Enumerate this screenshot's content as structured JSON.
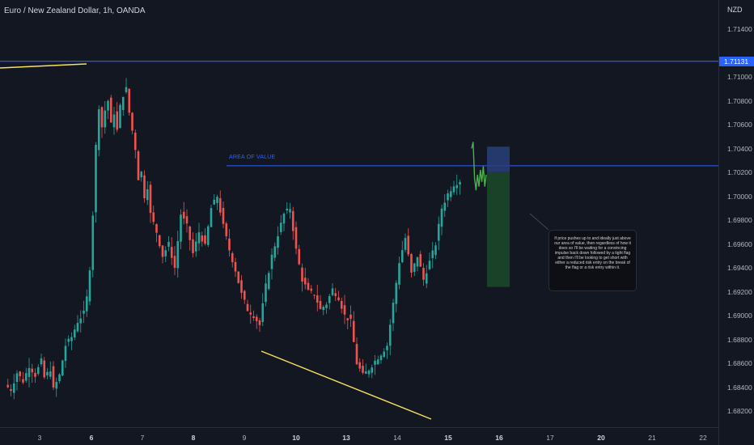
{
  "header": {
    "symbol_title": "Euro / New Zealand Dollar, 1h, OANDA"
  },
  "price_axis": {
    "currency": "NZD",
    "labels": [
      "1.71400",
      "1.71000",
      "1.70800",
      "1.70600",
      "1.70400",
      "1.70200",
      "1.70000",
      "1.69800",
      "1.69600",
      "1.69400",
      "1.69200",
      "1.69000",
      "1.68800",
      "1.68600",
      "1.68400",
      "1.68200"
    ],
    "current_price": "1.71131",
    "current_price_color": "#2962ff"
  },
  "time_axis": {
    "labels": [
      "3",
      "6",
      "7",
      "8",
      "9",
      "10",
      "13",
      "14",
      "15",
      "16",
      "17",
      "20",
      "21",
      "22"
    ],
    "bold_labels": [
      "6",
      "8",
      "10",
      "13",
      "15",
      "16",
      "20"
    ]
  },
  "annotations": {
    "area_of_value_label": "AREA OF VALUE",
    "note_text": "If price pushes up to and ideally just above our area of value, then regardless of how it does so I'll be waiting for a convincing impulse back down followed by a tight flag and then I'll be looking to get short with either a reduced risk entry on the break of the flag or a risk entry within it."
  },
  "colors": {
    "background": "#131722",
    "bull": "#26a69a",
    "bear": "#ef5350",
    "trendline": "#f7e35a",
    "level_line": "#2962ff",
    "projection": "#4caf50",
    "stop_zone": "#2a3f7a",
    "target_zone": "#1b4a2a"
  },
  "chart_data": {
    "type": "candlestick",
    "symbol": "Euro / New Zealand Dollar",
    "timeframe": "1h",
    "source": "OANDA",
    "y_range": [
      1.6805,
      1.7152
    ],
    "x_labels": [
      "3",
      "6",
      "7",
      "8",
      "9",
      "10",
      "13",
      "14",
      "15",
      "16",
      "17",
      "20",
      "21",
      "22"
    ],
    "close_path": [
      [
        0,
        1.6842
      ],
      [
        2,
        1.6838
      ],
      [
        4,
        1.6852
      ],
      [
        6,
        1.6845
      ],
      [
        8,
        1.6858
      ],
      [
        10,
        1.685
      ],
      [
        12,
        1.6862
      ],
      [
        13,
        1.6848
      ],
      [
        15,
        1.6855
      ],
      [
        16,
        1.6838
      ],
      [
        18,
        1.685
      ],
      [
        20,
        1.6875
      ],
      [
        22,
        1.6882
      ],
      [
        24,
        1.6895
      ],
      [
        26,
        1.6902
      ],
      [
        27,
        1.6915
      ],
      [
        28,
        1.694
      ],
      [
        29,
        1.6985
      ],
      [
        30,
        1.7042
      ],
      [
        31,
        1.7075
      ],
      [
        32,
        1.7058
      ],
      [
        33,
        1.7072
      ],
      [
        34,
        1.708
      ],
      [
        35,
        1.706
      ],
      [
        36,
        1.707
      ],
      [
        37,
        1.7055
      ],
      [
        38,
        1.7075
      ],
      [
        39,
        1.7085
      ],
      [
        40,
        1.709
      ],
      [
        41,
        1.707
      ],
      [
        42,
        1.7055
      ],
      [
        43,
        1.704
      ],
      [
        44,
        1.7015
      ],
      [
        45,
        1.702
      ],
      [
        46,
        1.7
      ],
      [
        47,
        1.7008
      ],
      [
        48,
        1.6985
      ],
      [
        50,
        1.697
      ],
      [
        52,
        1.695
      ],
      [
        54,
        1.696
      ],
      [
        56,
        1.694
      ],
      [
        58,
        1.6985
      ],
      [
        60,
        1.6975
      ],
      [
        62,
        1.6952
      ],
      [
        64,
        1.697
      ],
      [
        66,
        1.6958
      ],
      [
        68,
        1.699
      ],
      [
        70,
        1.7
      ],
      [
        72,
        1.6975
      ],
      [
        74,
        1.6955
      ],
      [
        76,
        1.6938
      ],
      [
        78,
        1.6918
      ],
      [
        80,
        1.6905
      ],
      [
        82,
        1.69
      ],
      [
        84,
        1.6892
      ],
      [
        86,
        1.6925
      ],
      [
        88,
        1.695
      ],
      [
        90,
        1.6968
      ],
      [
        92,
        1.6985
      ],
      [
        94,
        1.699
      ],
      [
        96,
        1.6955
      ],
      [
        98,
        1.693
      ],
      [
        100,
        1.692
      ],
      [
        102,
        1.6918
      ],
      [
        104,
        1.6905
      ],
      [
        106,
        1.691
      ],
      [
        108,
        1.6922
      ],
      [
        110,
        1.6915
      ],
      [
        112,
        1.69
      ],
      [
        114,
        1.6895
      ],
      [
        116,
        1.686
      ],
      [
        118,
        1.685
      ],
      [
        120,
        1.6855
      ],
      [
        122,
        1.6862
      ],
      [
        124,
        1.6868
      ],
      [
        126,
        1.6875
      ],
      [
        128,
        1.691
      ],
      [
        130,
        1.6945
      ],
      [
        132,
        1.6965
      ],
      [
        134,
        1.6935
      ],
      [
        136,
        1.695
      ],
      [
        138,
        1.693
      ],
      [
        140,
        1.6945
      ],
      [
        142,
        1.696
      ],
      [
        144,
        1.699
      ],
      [
        146,
        1.7002
      ],
      [
        148,
        1.701
      ],
      [
        150,
        1.7013
      ]
    ],
    "horizontal_levels": [
      {
        "name": "resistance",
        "value": 1.71131
      },
      {
        "name": "area_of_value",
        "value": 1.70255
      }
    ],
    "trendlines": [
      {
        "name": "upper",
        "from": [
          1.7125
        ],
        "to": [
          1.71131
        ]
      },
      {
        "name": "lower",
        "from": [
          1.6868
        ],
        "to": [
          1.6818
        ]
      }
    ],
    "short_position": {
      "entry": 1.70255,
      "stop": 1.7032,
      "target": 1.6924
    },
    "projection_path": [
      1.704,
      1.70455,
      1.7015,
      1.7005,
      1.7018,
      1.7008,
      1.7022,
      1.7012,
      1.7025,
      1.7008,
      1.7018
    ]
  }
}
